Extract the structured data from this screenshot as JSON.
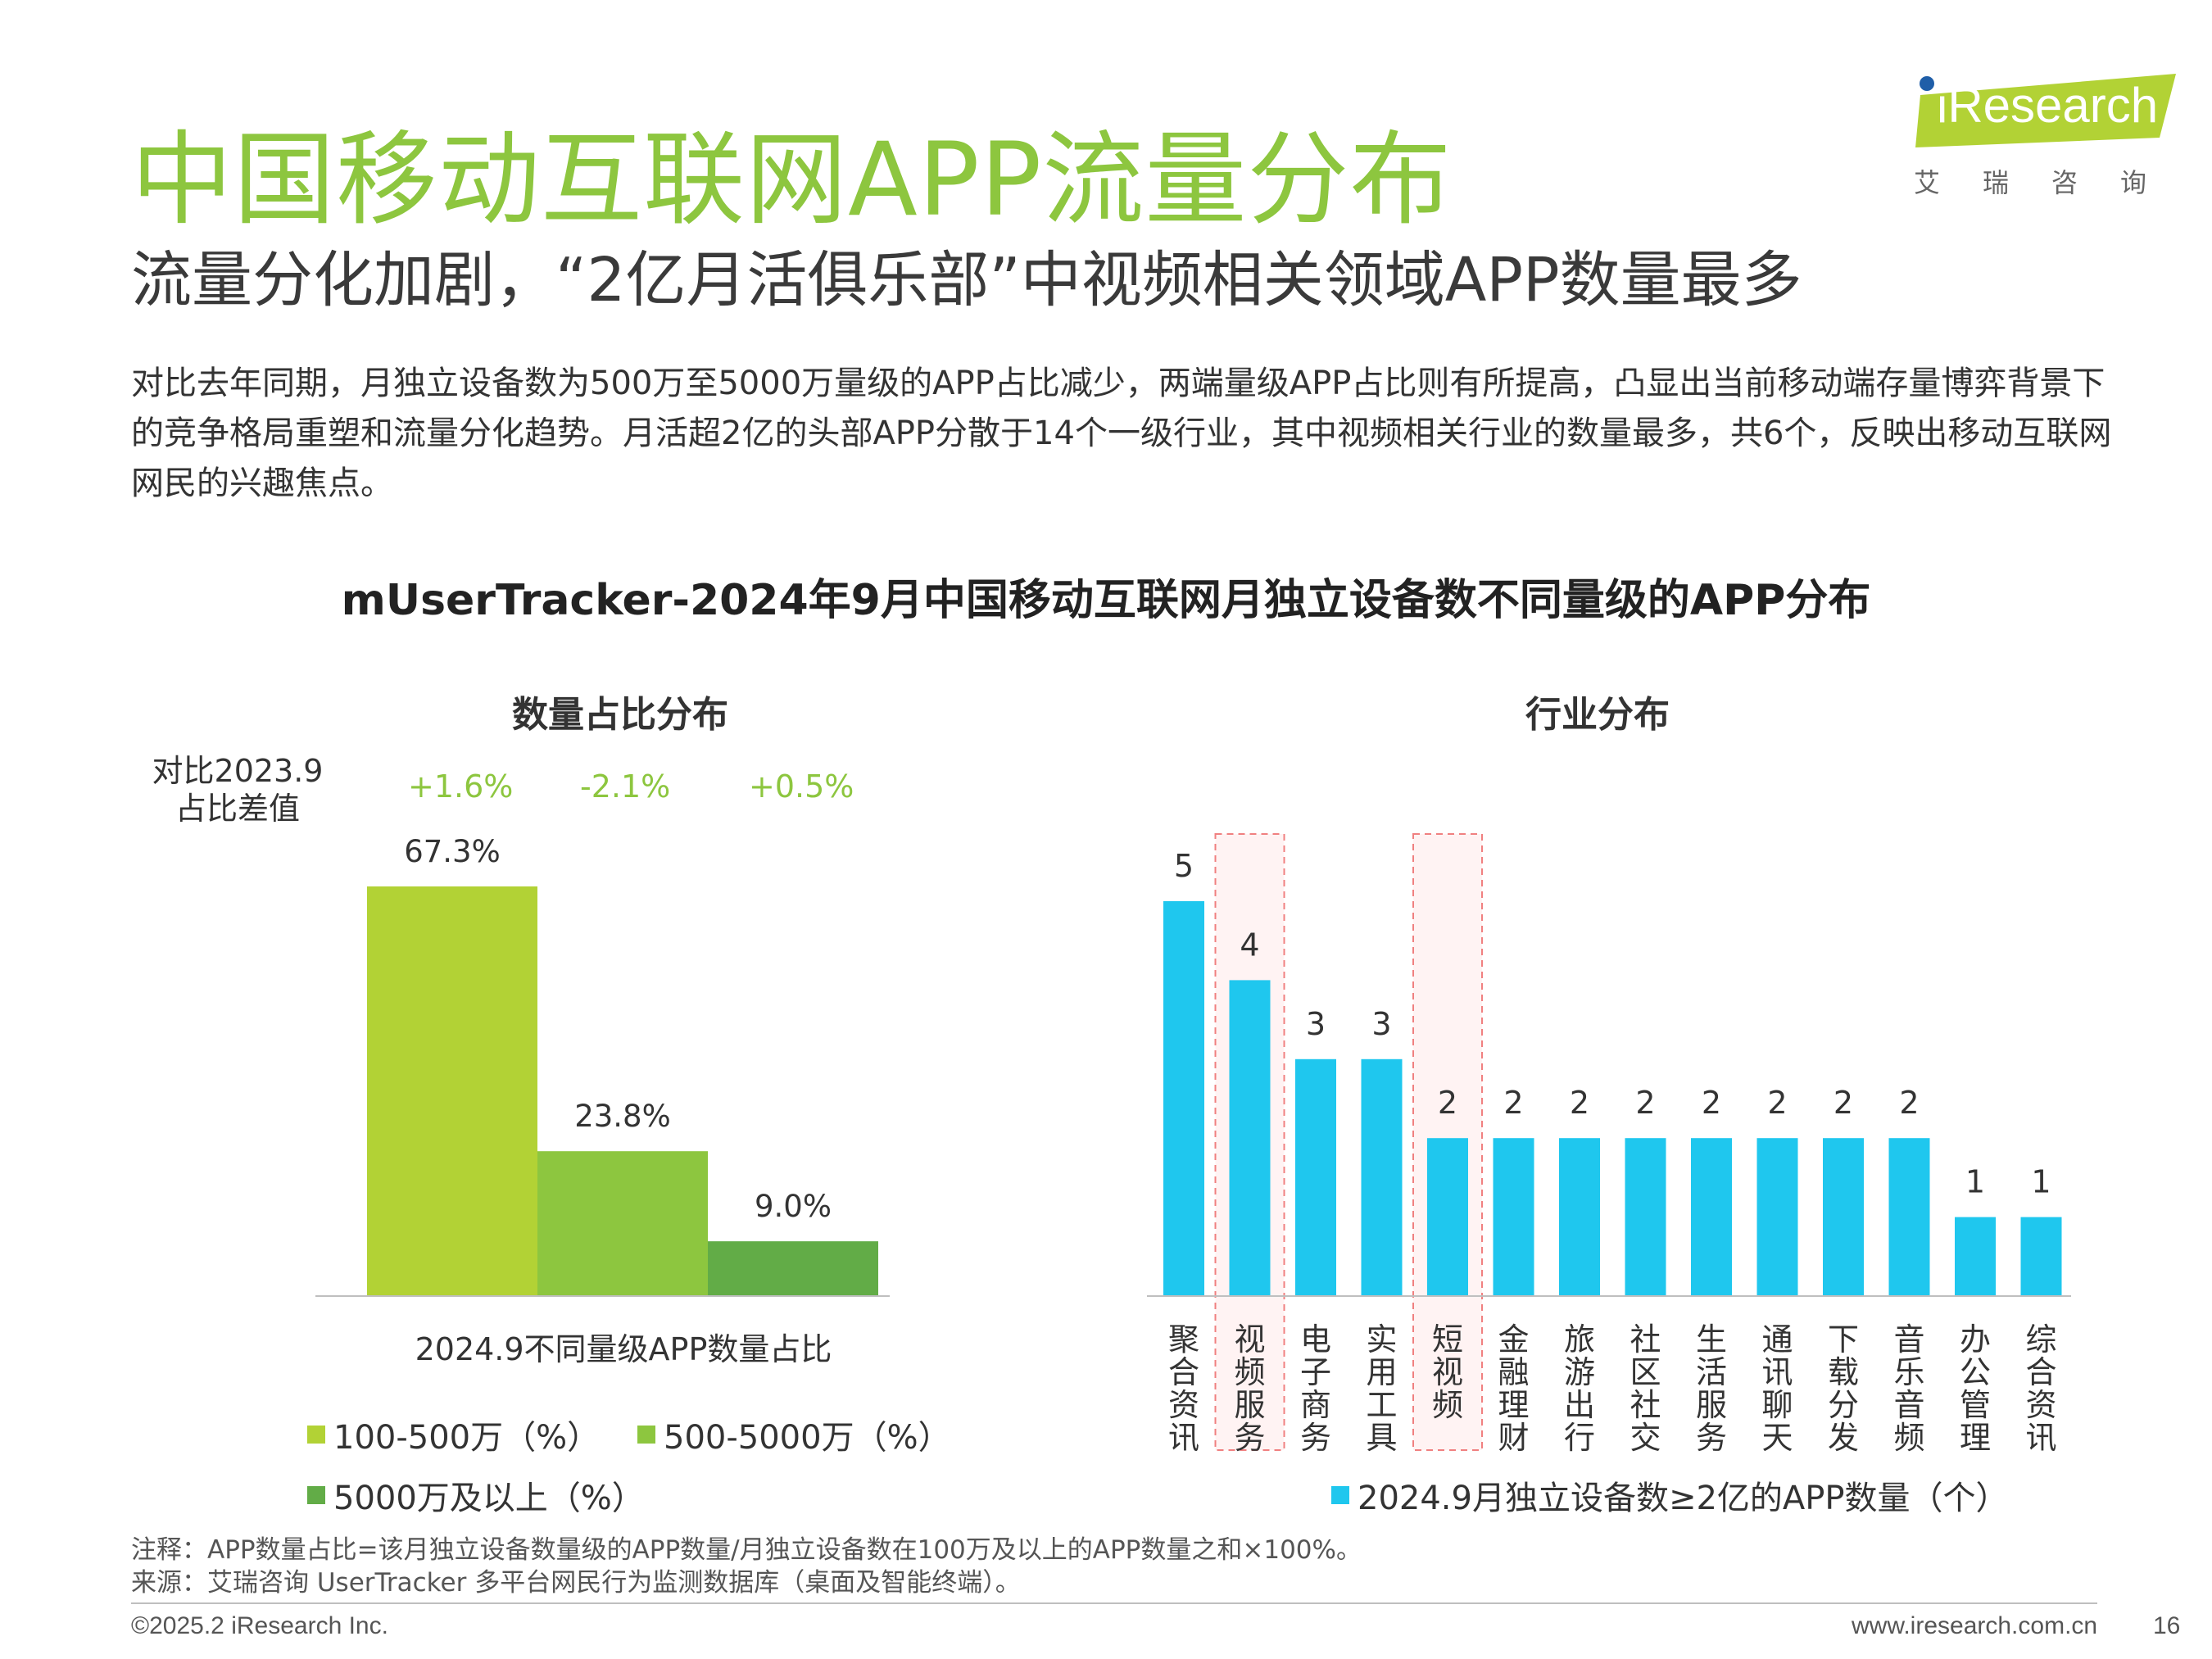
{
  "header": {
    "title": "中国移动互联网APP流量分布",
    "subtitle": "流量分化加剧，“2亿月活俱乐部”中视频相关领域APP数量最多",
    "description": "对比去年同期，月独立设备数为500万至5000万量级的APP占比减少，两端量级APP占比则有所提高，凸显出当前移动端存量博弈背景下的竞争格局重塑和流量分化趋势。月活超2亿的头部APP分散于14个一级行业，其中视频相关行业的数量最多，共6个，反映出移动互联网网民的兴趣焦点。"
  },
  "logo": {
    "text": "iResearch",
    "sub": "艾瑞咨询"
  },
  "colors": {
    "title_green": "#8dc63f",
    "bar_light": "#b2d235",
    "bar_mid": "#8dc63f",
    "bar_dark": "#62ac47",
    "bar_blue": "#1fc7ee",
    "highlight_border": "#f08080",
    "highlight_fill": "#fff3f3"
  },
  "main_title": "mUserTracker-2024年9月中国移动互联网月独立设备数不同量级的APP分布",
  "chart_data": [
    {
      "type": "bar",
      "title": "数量占比分布",
      "xlabel": "2024.9不同量级APP数量占比",
      "categories": [
        "100-500万（%）",
        "500-5000万（%）",
        "5000万及以上（%）"
      ],
      "values": [
        67.3,
        23.8,
        9.0
      ],
      "value_labels": [
        "67.3%",
        "23.8%",
        "9.0%"
      ],
      "diff_label": "对比2023.9\n占比差值",
      "diff_values": [
        "+1.6%",
        "-2.1%",
        "+0.5%"
      ],
      "legend": [
        "100-500万（%）",
        "500-5000万（%）",
        "5000万及以上（%）"
      ],
      "ylim": [
        0,
        70
      ],
      "legend_placement": "bottom"
    },
    {
      "type": "bar",
      "title": "行业分布",
      "categories": [
        "聚合资讯",
        "视频服务",
        "电子商务",
        "实用工具",
        "短视频",
        "金融理财",
        "旅游出行",
        "社区社交",
        "生活服务",
        "通讯聊天",
        "下载分发",
        "音乐音频",
        "办公管理",
        "综合资讯"
      ],
      "values": [
        5,
        4,
        3,
        3,
        2,
        2,
        2,
        2,
        2,
        2,
        2,
        2,
        1,
        1
      ],
      "highlighted": [
        "视频服务",
        "短视频"
      ],
      "legend": [
        "2024.9月独立设备数≥2亿的APP数量（个）"
      ],
      "ylim": [
        0,
        6
      ],
      "legend_placement": "bottom"
    }
  ],
  "notes": {
    "note": "注释：APP数量占比=该月独立设备数量级的APP数量/月独立设备数在100万及以上的APP数量之和×100%。",
    "source": "来源：艾瑞咨询 UserTracker 多平台网民行为监测数据库（桌面及智能终端）。"
  },
  "footer": {
    "copyright": "©2025.2 iResearch Inc.",
    "website": "www.iresearch.com.cn",
    "page": "16"
  }
}
